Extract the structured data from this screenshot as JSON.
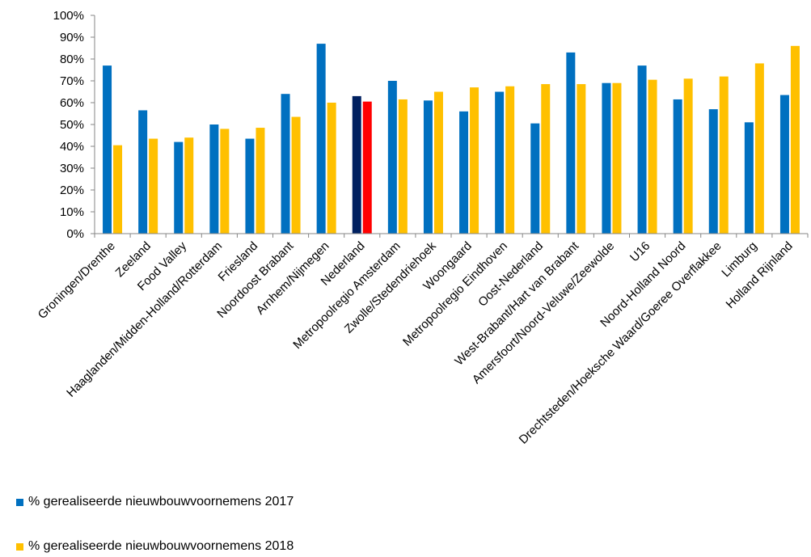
{
  "chart_data": {
    "type": "bar",
    "title": "",
    "xlabel": "",
    "ylabel": "",
    "ylim": [
      0,
      100
    ],
    "yticks": [
      "0%",
      "10%",
      "20%",
      "30%",
      "40%",
      "50%",
      "60%",
      "70%",
      "80%",
      "90%",
      "100%"
    ],
    "grid": false,
    "legend_position": "bottom-left",
    "categories": [
      "Groningen/Drenthe",
      "Zeeland",
      "Food Valley",
      "Haaglanden/Midden-Holland/Rotterdam",
      "Friesland",
      "Noordoost Brabant",
      "Arnhem/Nijmegen",
      "Nederland",
      "Metropoolregio Amsterdam",
      "Zwolle/Stedendriehoek",
      "Woongaard",
      "Metropoolregio Eindhoven",
      "Oost-Nederland",
      "West-Brabant/Hart van Brabant",
      "Amersfoort/Noord-Veluwe/Zeewolde",
      "U16",
      "Noord-Holland Noord",
      "Drechtsteden/Hoeksche Waard/Goeree Overflakkee",
      "Limburg",
      "Holland Rijnland"
    ],
    "series": [
      {
        "name": "% gerealiseerde nieuwbouwvoornemens  2017",
        "color": "#0070C0",
        "highlight": {
          "category": "Nederland",
          "color": "#002060"
        },
        "values": [
          77,
          56.5,
          42,
          50,
          43.5,
          64,
          87,
          63,
          70,
          61,
          56,
          65,
          50.5,
          83,
          69,
          77,
          61.5,
          57,
          51,
          63.5
        ]
      },
      {
        "name": "% gerealiseerde nieuwbouwvoornemens  2018",
        "color": "#FFC000",
        "highlight": {
          "category": "Nederland",
          "color": "#FF0000"
        },
        "values": [
          40.5,
          43.5,
          44,
          48,
          48.5,
          53.5,
          60,
          60.5,
          61.5,
          65,
          67,
          67.5,
          68.5,
          68.5,
          69,
          70.5,
          71,
          72,
          78,
          86
        ]
      }
    ]
  }
}
